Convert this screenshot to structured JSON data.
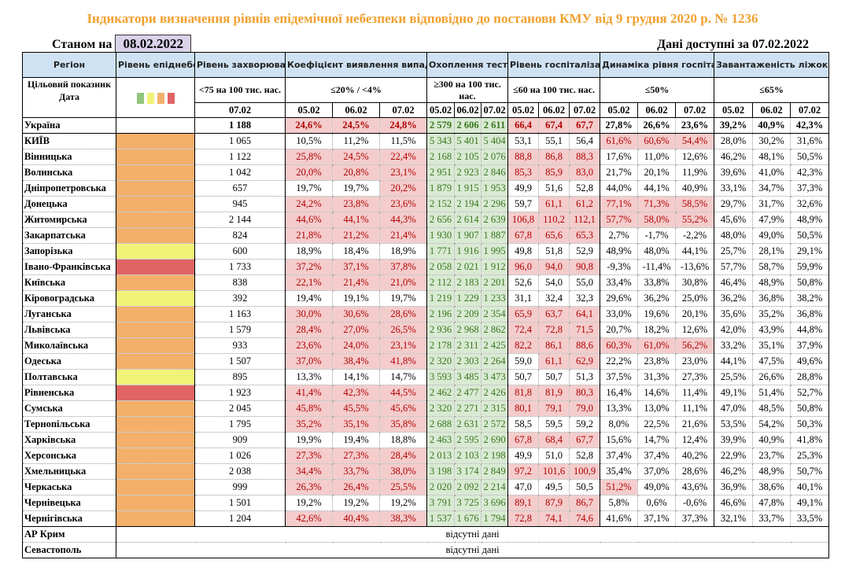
{
  "title": "Індикатори визначення рівнів епідемічної небезпеки відповідно до постанови КМУ від 9 грудня 2020 р. № 1236",
  "as_of_label": "Станом на",
  "as_of_date": "08.02.2022",
  "available_label": "Дані доступні за",
  "available_date": "07.02.2022",
  "headers": {
    "region": "Регіон",
    "level": "Рівень епіднебезпеки",
    "incidence": "Рівень захворюваності",
    "coef": "Коефіцієнт виявлення випадків інфікування",
    "testing": "Охоплення тестуванням",
    "hosp": "Рівень госпіталізацій",
    "dyn": "Динаміка рівня госпіталізацій",
    "beds": "Завантаженість ліжок з киснем"
  },
  "targets": {
    "label": "Цільовий показник",
    "incidence": "<75 на 100 тис. нас.",
    "coef": "≤20% / <4%",
    "testing": "≥300 на 100 тис. нас.",
    "hosp": "≤60 на 100 тис. нас.",
    "dyn": "≤50%",
    "beds": "≤65%"
  },
  "date_label": "Дата",
  "incidence_date": "07.02",
  "dates": [
    "05.02",
    "06.02",
    "07.02"
  ],
  "level_colors": {
    "green": "#93c47d",
    "yellow": "#f2f279",
    "orange": "#f4b06a",
    "red": "#e06464"
  },
  "level_legend": [
    "green",
    "yellow",
    "orange",
    "red"
  ],
  "ukraine": {
    "name": "Україна",
    "incidence": "1 188",
    "coef": [
      "24,6%",
      "24,5%",
      "24,8%"
    ],
    "testing": [
      "2 579",
      "2 606",
      "2 611"
    ],
    "hosp": [
      "66,4",
      "67,4",
      "67,7"
    ],
    "dyn": [
      "27,8%",
      "26,6%",
      "23,6%"
    ],
    "beds": [
      "39,2%",
      "40,9%",
      "42,3%"
    ]
  },
  "regions": [
    {
      "name": "КИЇВ",
      "level": "orange",
      "incidence": "1 065",
      "coef": [
        "10,5%",
        "11,2%",
        "11,5%"
      ],
      "testing": [
        "5 343",
        "5 401",
        "5 404"
      ],
      "hosp": [
        "53,1",
        "55,1",
        "56,4"
      ],
      "dyn": [
        "61,6%",
        "60,6%",
        "54,4%"
      ],
      "beds": [
        "28,0%",
        "30,2%",
        "31,6%"
      ]
    },
    {
      "name": "Вінницька",
      "level": "orange",
      "incidence": "1 122",
      "coef": [
        "25,8%",
        "24,5%",
        "22,4%"
      ],
      "testing": [
        "2 168",
        "2 105",
        "2 076"
      ],
      "hosp": [
        "88,8",
        "86,8",
        "88,3"
      ],
      "dyn": [
        "17,6%",
        "11,0%",
        "12,6%"
      ],
      "beds": [
        "46,2%",
        "48,1%",
        "50,5%"
      ]
    },
    {
      "name": "Волинська",
      "level": "orange",
      "incidence": "1 042",
      "coef": [
        "20,0%",
        "20,8%",
        "23,1%"
      ],
      "testing": [
        "2 951",
        "2 923",
        "2 846"
      ],
      "hosp": [
        "85,3",
        "85,9",
        "83,0"
      ],
      "dyn": [
        "21,7%",
        "20,1%",
        "11,9%"
      ],
      "beds": [
        "39,6%",
        "41,0%",
        "42,3%"
      ]
    },
    {
      "name": "Дніпропетровська",
      "level": "orange",
      "incidence": "657",
      "coef": [
        "19,7%",
        "19,7%",
        "20,2%"
      ],
      "testing": [
        "1 879",
        "1 915",
        "1 953"
      ],
      "hosp": [
        "49,9",
        "51,6",
        "52,8"
      ],
      "dyn": [
        "44,0%",
        "44,1%",
        "40,9%"
      ],
      "beds": [
        "33,1%",
        "34,7%",
        "37,3%"
      ]
    },
    {
      "name": "Донецька",
      "level": "orange",
      "incidence": "945",
      "coef": [
        "24,2%",
        "23,8%",
        "23,6%"
      ],
      "testing": [
        "2 152",
        "2 194",
        "2 296"
      ],
      "hosp": [
        "59,7",
        "61,1",
        "61,2"
      ],
      "dyn": [
        "77,1%",
        "71,3%",
        "58,5%"
      ],
      "beds": [
        "29,7%",
        "31,7%",
        "32,6%"
      ]
    },
    {
      "name": "Житомирська",
      "level": "orange",
      "incidence": "2 144",
      "coef": [
        "44,6%",
        "44,1%",
        "44,3%"
      ],
      "testing": [
        "2 656",
        "2 614",
        "2 639"
      ],
      "hosp": [
        "106,8",
        "110,2",
        "112,1"
      ],
      "dyn": [
        "57,7%",
        "58,0%",
        "55,2%"
      ],
      "beds": [
        "45,6%",
        "47,9%",
        "48,9%"
      ]
    },
    {
      "name": "Закарпатська",
      "level": "orange",
      "incidence": "824",
      "coef": [
        "21,8%",
        "21,2%",
        "21,4%"
      ],
      "testing": [
        "1 930",
        "1 907",
        "1 887"
      ],
      "hosp": [
        "67,8",
        "65,6",
        "65,3"
      ],
      "dyn": [
        "2,7%",
        "-1,7%",
        "-2,2%"
      ],
      "beds": [
        "48,0%",
        "49,0%",
        "50,5%"
      ]
    },
    {
      "name": "Запорізька",
      "level": "yellow",
      "incidence": "600",
      "coef": [
        "18,9%",
        "18,4%",
        "18,9%"
      ],
      "testing": [
        "1 771",
        "1 916",
        "1 995"
      ],
      "hosp": [
        "49,8",
        "51,8",
        "52,9"
      ],
      "dyn": [
        "48,9%",
        "48,0%",
        "44,1%"
      ],
      "beds": [
        "25,7%",
        "28,1%",
        "29,1%"
      ]
    },
    {
      "name": "Івано-Франківська",
      "level": "red",
      "incidence": "1 733",
      "coef": [
        "37,2%",
        "37,1%",
        "37,8%"
      ],
      "testing": [
        "2 058",
        "2 021",
        "1 912"
      ],
      "hosp": [
        "96,0",
        "94,0",
        "90,8"
      ],
      "dyn": [
        "-9,3%",
        "-11,4%",
        "-13,6%"
      ],
      "beds": [
        "57,7%",
        "58,7%",
        "59,9%"
      ]
    },
    {
      "name": "Київська",
      "level": "orange",
      "incidence": "838",
      "coef": [
        "22,1%",
        "21,4%",
        "21,0%"
      ],
      "testing": [
        "2 112",
        "2 183",
        "2 201"
      ],
      "hosp": [
        "52,6",
        "54,0",
        "55,0"
      ],
      "dyn": [
        "33,4%",
        "33,8%",
        "30,8%"
      ],
      "beds": [
        "46,4%",
        "48,9%",
        "50,8%"
      ]
    },
    {
      "name": "Кіровоградська",
      "level": "yellow",
      "incidence": "392",
      "coef": [
        "19,4%",
        "19,1%",
        "19,7%"
      ],
      "testing": [
        "1 219",
        "1 229",
        "1 233"
      ],
      "hosp": [
        "31,1",
        "32,4",
        "32,3"
      ],
      "dyn": [
        "29,6%",
        "36,2%",
        "25,0%"
      ],
      "beds": [
        "36,2%",
        "36,8%",
        "38,2%"
      ]
    },
    {
      "name": "Луганська",
      "level": "orange",
      "incidence": "1 163",
      "coef": [
        "30,0%",
        "30,6%",
        "28,6%"
      ],
      "testing": [
        "2 196",
        "2 209",
        "2 354"
      ],
      "hosp": [
        "65,9",
        "63,7",
        "64,1"
      ],
      "dyn": [
        "33,0%",
        "19,6%",
        "20,1%"
      ],
      "beds": [
        "35,6%",
        "35,2%",
        "36,8%"
      ]
    },
    {
      "name": "Львівська",
      "level": "orange",
      "incidence": "1 579",
      "coef": [
        "28,4%",
        "27,0%",
        "26,5%"
      ],
      "testing": [
        "2 936",
        "2 968",
        "2 862"
      ],
      "hosp": [
        "72,4",
        "72,8",
        "71,5"
      ],
      "dyn": [
        "20,7%",
        "18,2%",
        "12,6%"
      ],
      "beds": [
        "42,0%",
        "43,9%",
        "44,8%"
      ]
    },
    {
      "name": "Миколаївська",
      "level": "orange",
      "incidence": "933",
      "coef": [
        "23,6%",
        "24,0%",
        "23,1%"
      ],
      "testing": [
        "2 178",
        "2 311",
        "2 425"
      ],
      "hosp": [
        "82,2",
        "86,1",
        "88,6"
      ],
      "dyn": [
        "60,3%",
        "61,0%",
        "56,2%"
      ],
      "beds": [
        "33,2%",
        "35,1%",
        "37,9%"
      ]
    },
    {
      "name": "Одеська",
      "level": "orange",
      "incidence": "1 507",
      "coef": [
        "37,0%",
        "38,4%",
        "41,8%"
      ],
      "testing": [
        "2 320",
        "2 303",
        "2 264"
      ],
      "hosp": [
        "59,0",
        "61,1",
        "62,9"
      ],
      "dyn": [
        "22,2%",
        "23,8%",
        "23,0%"
      ],
      "beds": [
        "44,1%",
        "47,5%",
        "49,6%"
      ]
    },
    {
      "name": "Полтавська",
      "level": "yellow",
      "incidence": "895",
      "coef": [
        "13,3%",
        "14,1%",
        "14,7%"
      ],
      "testing": [
        "3 593",
        "3 485",
        "3 473"
      ],
      "hosp": [
        "50,7",
        "50,7",
        "51,3"
      ],
      "dyn": [
        "37,5%",
        "31,3%",
        "27,3%"
      ],
      "beds": [
        "25,5%",
        "26,6%",
        "28,8%"
      ]
    },
    {
      "name": "Рівненська",
      "level": "red",
      "incidence": "1 923",
      "coef": [
        "41,4%",
        "42,3%",
        "44,5%"
      ],
      "testing": [
        "2 462",
        "2 477",
        "2 426"
      ],
      "hosp": [
        "81,8",
        "81,9",
        "80,3"
      ],
      "dyn": [
        "16,4%",
        "14,6%",
        "11,4%"
      ],
      "beds": [
        "49,1%",
        "51,4%",
        "52,7%"
      ]
    },
    {
      "name": "Сумська",
      "level": "orange",
      "incidence": "2 045",
      "coef": [
        "45,8%",
        "45,5%",
        "45,6%"
      ],
      "testing": [
        "2 320",
        "2 271",
        "2 315"
      ],
      "hosp": [
        "80,1",
        "79,1",
        "79,0"
      ],
      "dyn": [
        "13,3%",
        "13,0%",
        "11,1%"
      ],
      "beds": [
        "47,0%",
        "48,5%",
        "50,8%"
      ]
    },
    {
      "name": "Тернопільська",
      "level": "orange",
      "incidence": "1 795",
      "coef": [
        "35,2%",
        "35,1%",
        "35,8%"
      ],
      "testing": [
        "2 688",
        "2 631",
        "2 572"
      ],
      "hosp": [
        "58,5",
        "59,5",
        "59,2"
      ],
      "dyn": [
        "8,0%",
        "22,5%",
        "21,6%"
      ],
      "beds": [
        "53,5%",
        "54,2%",
        "50,3%"
      ]
    },
    {
      "name": "Харківська",
      "level": "orange",
      "incidence": "909",
      "coef": [
        "19,9%",
        "19,4%",
        "18,8%"
      ],
      "testing": [
        "2 463",
        "2 595",
        "2 690"
      ],
      "hosp": [
        "67,8",
        "68,4",
        "67,7"
      ],
      "dyn": [
        "15,6%",
        "14,7%",
        "12,4%"
      ],
      "beds": [
        "39,9%",
        "40,9%",
        "41,8%"
      ]
    },
    {
      "name": "Херсонська",
      "level": "orange",
      "incidence": "1 026",
      "coef": [
        "27,3%",
        "27,3%",
        "28,4%"
      ],
      "testing": [
        "2 013",
        "2 103",
        "2 198"
      ],
      "hosp": [
        "49,9",
        "51,0",
        "52,8"
      ],
      "dyn": [
        "37,4%",
        "37,4%",
        "40,2%"
      ],
      "beds": [
        "22,9%",
        "23,7%",
        "25,3%"
      ]
    },
    {
      "name": "Хмельницька",
      "level": "orange",
      "incidence": "2 038",
      "coef": [
        "34,4%",
        "33,7%",
        "38,0%"
      ],
      "testing": [
        "3 198",
        "3 174",
        "2 849"
      ],
      "hosp": [
        "97,2",
        "101,6",
        "100,9"
      ],
      "dyn": [
        "35,4%",
        "37,0%",
        "28,6%"
      ],
      "beds": [
        "46,2%",
        "48,9%",
        "50,7%"
      ]
    },
    {
      "name": "Черкаська",
      "level": "orange",
      "incidence": "999",
      "coef": [
        "26,3%",
        "26,4%",
        "25,5%"
      ],
      "testing": [
        "2 020",
        "2 092",
        "2 214"
      ],
      "hosp": [
        "47,0",
        "49,5",
        "50,5"
      ],
      "dyn": [
        "51,2%",
        "49,0%",
        "43,6%"
      ],
      "beds": [
        "36,9%",
        "38,6%",
        "40,1%"
      ]
    },
    {
      "name": "Чернівецька",
      "level": "orange",
      "incidence": "1 501",
      "coef": [
        "19,2%",
        "19,2%",
        "19,2%"
      ],
      "testing": [
        "3 791",
        "3 725",
        "3 696"
      ],
      "hosp": [
        "89,1",
        "87,9",
        "86,7"
      ],
      "dyn": [
        "5,8%",
        "0,6%",
        "-0,6%"
      ],
      "beds": [
        "46,6%",
        "47,8%",
        "49,1%"
      ]
    },
    {
      "name": "Чернігівська",
      "level": "orange",
      "incidence": "1 204",
      "coef": [
        "42,6%",
        "40,4%",
        "38,3%"
      ],
      "testing": [
        "1 537",
        "1 676",
        "1 794"
      ],
      "hosp": [
        "72,8",
        "74,1",
        "74,6"
      ],
      "dyn": [
        "41,6%",
        "37,1%",
        "37,3%"
      ],
      "beds": [
        "32,1%",
        "33,7%",
        "33,5%"
      ]
    }
  ],
  "no_data": [
    {
      "name": "АР Крим",
      "text": "відсутні дані"
    },
    {
      "name": "Севастополь",
      "text": "відсутні дані"
    }
  ]
}
